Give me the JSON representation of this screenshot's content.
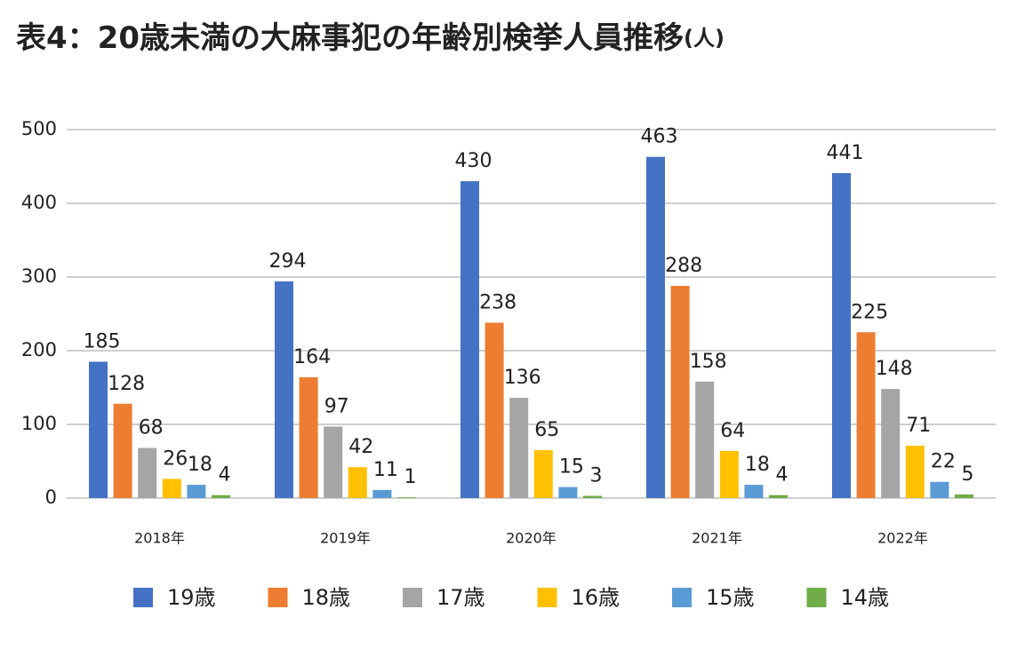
{
  "chart_data": {
    "type": "bar",
    "title": "表4：20歳未満の大麻事犯の年齢別検挙人員推移",
    "unit": "(人)",
    "categories": [
      "2018年",
      "2019年",
      "2020年",
      "2021年",
      "2022年"
    ],
    "series": [
      {
        "name": "19歳",
        "color": "#4472c4",
        "values": [
          185,
          294,
          430,
          463,
          441
        ]
      },
      {
        "name": "18歳",
        "color": "#ed7d31",
        "values": [
          128,
          164,
          238,
          288,
          225
        ]
      },
      {
        "name": "17歳",
        "color": "#a5a5a5",
        "values": [
          68,
          97,
          136,
          158,
          148
        ]
      },
      {
        "name": "16歳",
        "color": "#ffc000",
        "values": [
          26,
          42,
          65,
          64,
          71
        ]
      },
      {
        "name": "15歳",
        "color": "#5b9bd5",
        "values": [
          18,
          11,
          15,
          18,
          22
        ]
      },
      {
        "name": "14歳",
        "color": "#70ad47",
        "values": [
          4,
          1,
          3,
          4,
          5
        ]
      }
    ],
    "ylim": [
      0,
      500
    ],
    "yticks": [
      0,
      100,
      200,
      300,
      400,
      500
    ],
    "grid": true
  }
}
